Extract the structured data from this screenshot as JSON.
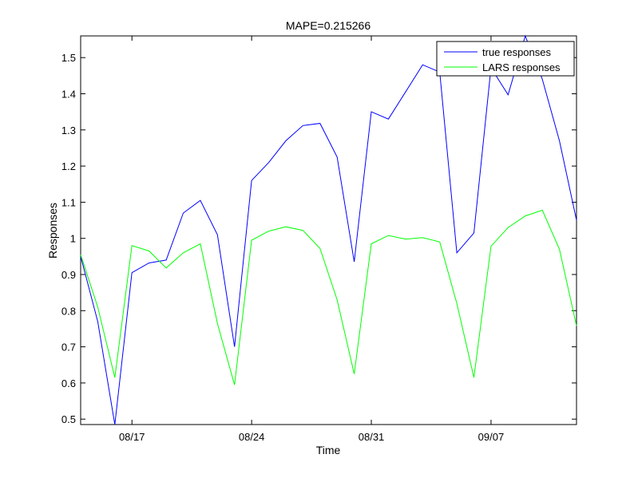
{
  "chart_data": {
    "type": "line",
    "title": "MAPE=0.215266",
    "xlabel": "Time",
    "ylabel": "Responses",
    "x": [
      "08/14",
      "08/15",
      "08/16",
      "08/17",
      "08/18",
      "08/19",
      "08/20",
      "08/21",
      "08/22",
      "08/23",
      "08/24",
      "08/25",
      "08/26",
      "08/27",
      "08/28",
      "08/29",
      "08/30",
      "08/31",
      "09/01",
      "09/02",
      "09/03",
      "09/04",
      "09/05",
      "09/06",
      "09/07",
      "09/08",
      "09/09",
      "09/10",
      "09/11",
      "09/12"
    ],
    "xlim": [
      "08/14",
      "09/12"
    ],
    "x_ticks": [
      {
        "label": "08/17",
        "index": 3
      },
      {
        "label": "08/24",
        "index": 10
      },
      {
        "label": "08/31",
        "index": 17
      },
      {
        "label": "09/07",
        "index": 24
      }
    ],
    "ylim": [
      0.485,
      1.56
    ],
    "y_ticks": [
      {
        "label": "0.5",
        "value": 0.5
      },
      {
        "label": "0.6",
        "value": 0.6
      },
      {
        "label": "0.7",
        "value": 0.7
      },
      {
        "label": "0.8",
        "value": 0.8
      },
      {
        "label": "0.9",
        "value": 0.9
      },
      {
        "label": "1",
        "value": 1.0
      },
      {
        "label": "1.1",
        "value": 1.1
      },
      {
        "label": "1.2",
        "value": 1.2
      },
      {
        "label": "1.3",
        "value": 1.3
      },
      {
        "label": "1.4",
        "value": 1.4
      },
      {
        "label": "1.5",
        "value": 1.5
      }
    ],
    "grid": false,
    "legend_position": "top-right",
    "series": [
      {
        "name": "true responses",
        "color": "#0000ff",
        "values": [
          0.95,
          0.77,
          0.485,
          0.905,
          0.932,
          0.94,
          1.07,
          1.105,
          1.01,
          0.7,
          1.16,
          1.21,
          1.27,
          1.312,
          1.318,
          1.225,
          0.935,
          1.35,
          1.33,
          1.405,
          1.48,
          1.46,
          0.96,
          1.015,
          1.472,
          1.397,
          1.56,
          1.44,
          1.27,
          1.05
        ]
      },
      {
        "name": "LARS responses",
        "color": "#00ff00",
        "values": [
          0.955,
          0.81,
          0.615,
          0.98,
          0.965,
          0.918,
          0.96,
          0.985,
          0.765,
          0.595,
          0.995,
          1.02,
          1.032,
          1.022,
          0.972,
          0.83,
          0.625,
          0.985,
          1.008,
          0.998,
          1.002,
          0.99,
          0.82,
          0.615,
          0.978,
          1.03,
          1.062,
          1.078,
          0.97,
          0.758
        ]
      }
    ]
  }
}
